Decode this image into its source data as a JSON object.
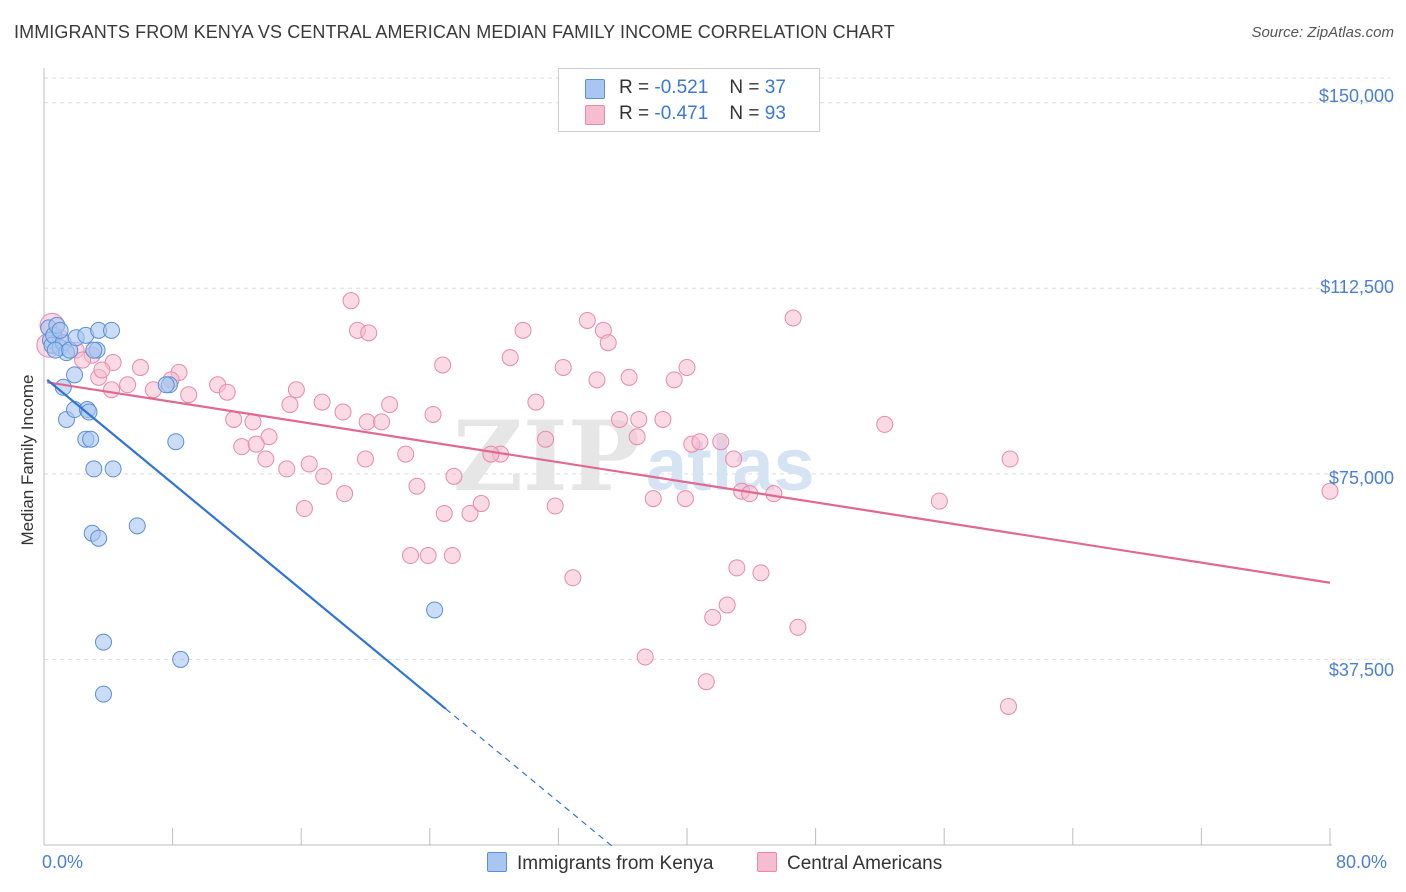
{
  "header": {
    "title": "IMMIGRANTS FROM KENYA VS CENTRAL AMERICAN MEDIAN FAMILY INCOME CORRELATION CHART",
    "source": "Source: ZipAtlas.com"
  },
  "legend": {
    "row1": {
      "r_label": "R =",
      "r_value": "-0.521",
      "n_label": "N =",
      "n_value": "37"
    },
    "row2": {
      "r_label": "R =",
      "r_value": "-0.471",
      "n_label": "N =",
      "n_value": "93"
    }
  },
  "bottom_legend": {
    "kenya": "Immigrants from Kenya",
    "central": "Central Americans"
  },
  "watermark": {
    "zip": "ZIP",
    "atlas": "atlas"
  },
  "colors": {
    "kenya_fill": "#a9c6f0",
    "kenya_stroke": "#5b8fd8",
    "kenya_line": "#2f74d6",
    "central_fill": "#f6bcd0",
    "central_stroke": "#e98aaa",
    "central_line": "#e06893",
    "tick_label": "#4a7fd0"
  },
  "chart_data": {
    "type": "scatter",
    "title": "IMMIGRANTS FROM KENYA VS CENTRAL AMERICAN MEDIAN FAMILY INCOME CORRELATION CHART",
    "xlabel": "",
    "ylabel": "Median Family Income",
    "xlim": [
      0,
      80
    ],
    "ylim": [
      0,
      155000
    ],
    "x_tick_labels": [
      "0.0%",
      "80.0%"
    ],
    "y_ticks": [
      37500,
      75000,
      112500,
      150000
    ],
    "y_tick_labels": [
      "$37,500",
      "$75,000",
      "$112,500",
      "$150,000"
    ],
    "grid": true,
    "legend_position": "top-center",
    "series": [
      {
        "name": "Immigrants from Kenya",
        "R": -0.521,
        "N": 37,
        "trend": {
          "x0": 0.2,
          "y0": 94000,
          "x1": 25,
          "y1": 27500,
          "dashed_to_x": 35.5
        },
        "points": [
          [
            0.3,
            104500
          ],
          [
            0.4,
            102000
          ],
          [
            0.5,
            101000
          ],
          [
            0.6,
            103000
          ],
          [
            0.8,
            105000
          ],
          [
            1.0,
            100500
          ],
          [
            1.2,
            101500
          ],
          [
            1.4,
            99500
          ],
          [
            0.7,
            100000
          ],
          [
            1.6,
            100000
          ],
          [
            2.0,
            102500
          ],
          [
            2.6,
            103000
          ],
          [
            3.4,
            104000
          ],
          [
            4.2,
            104000
          ],
          [
            3.3,
            100000
          ],
          [
            7.8,
            93000
          ],
          [
            1.9,
            95000
          ],
          [
            1.2,
            92500
          ],
          [
            1.4,
            86000
          ],
          [
            1.9,
            88000
          ],
          [
            2.7,
            88000
          ],
          [
            2.8,
            87500
          ],
          [
            2.6,
            82000
          ],
          [
            2.9,
            82000
          ],
          [
            3.1,
            76000
          ],
          [
            4.3,
            76000
          ],
          [
            8.2,
            81500
          ],
          [
            7.6,
            93000
          ],
          [
            3.0,
            63000
          ],
          [
            3.4,
            62000
          ],
          [
            5.8,
            64500
          ],
          [
            3.7,
            41000
          ],
          [
            3.7,
            30500
          ],
          [
            8.5,
            37500
          ],
          [
            24.3,
            47500
          ],
          [
            3.1,
            100000
          ],
          [
            1.0,
            104000
          ]
        ]
      },
      {
        "name": "Central Americans",
        "R": -0.471,
        "N": 93,
        "trend": {
          "x0": 0.2,
          "y0": 93500,
          "x1": 80,
          "y1": 53000
        },
        "points": [
          [
            0.3,
            101000
          ],
          [
            0.5,
            105000
          ],
          [
            1.0,
            102500
          ],
          [
            2.0,
            100000
          ],
          [
            3.0,
            99000
          ],
          [
            4.3,
            97500
          ],
          [
            3.4,
            94500
          ],
          [
            6.0,
            96500
          ],
          [
            8.4,
            95500
          ],
          [
            9.0,
            91000
          ],
          [
            10.8,
            93000
          ],
          [
            11.4,
            91500
          ],
          [
            11.8,
            86000
          ],
          [
            13.0,
            85500
          ],
          [
            14.0,
            82500
          ],
          [
            15.3,
            89000
          ],
          [
            15.7,
            92000
          ],
          [
            17.3,
            89500
          ],
          [
            18.6,
            87500
          ],
          [
            20.1,
            85500
          ],
          [
            21.5,
            89000
          ],
          [
            13.8,
            78000
          ],
          [
            15.1,
            76000
          ],
          [
            16.5,
            77000
          ],
          [
            17.4,
            74500
          ],
          [
            18.7,
            71000
          ],
          [
            20.0,
            78000
          ],
          [
            21.0,
            85500
          ],
          [
            22.5,
            79000
          ],
          [
            23.2,
            72500
          ],
          [
            24.2,
            87000
          ],
          [
            24.9,
            67000
          ],
          [
            25.5,
            74500
          ],
          [
            26.5,
            67000
          ],
          [
            27.2,
            69000
          ],
          [
            28.4,
            79000
          ],
          [
            29.0,
            98500
          ],
          [
            29.8,
            104000
          ],
          [
            30.6,
            89500
          ],
          [
            31.2,
            82000
          ],
          [
            31.8,
            68500
          ],
          [
            32.3,
            96500
          ],
          [
            32.9,
            54000
          ],
          [
            33.8,
            106000
          ],
          [
            34.4,
            94000
          ],
          [
            34.8,
            104000
          ],
          [
            35.1,
            101500
          ],
          [
            35.8,
            86000
          ],
          [
            36.4,
            94500
          ],
          [
            36.9,
            82500
          ],
          [
            37.4,
            38000
          ],
          [
            37.0,
            86000
          ],
          [
            37.9,
            70000
          ],
          [
            38.5,
            86000
          ],
          [
            39.2,
            94000
          ],
          [
            39.9,
            70000
          ],
          [
            40.3,
            81000
          ],
          [
            40.8,
            81500
          ],
          [
            40.0,
            96500
          ],
          [
            41.2,
            33000
          ],
          [
            41.6,
            46000
          ],
          [
            42.1,
            81500
          ],
          [
            42.5,
            48500
          ],
          [
            42.9,
            78000
          ],
          [
            43.1,
            56000
          ],
          [
            43.4,
            71500
          ],
          [
            43.9,
            71000
          ],
          [
            44.6,
            55000
          ],
          [
            45.4,
            71000
          ],
          [
            46.9,
            44000
          ],
          [
            46.6,
            106500
          ],
          [
            52.3,
            85000
          ],
          [
            55.7,
            69500
          ],
          [
            60.1,
            78000
          ],
          [
            60.0,
            28000
          ],
          [
            80.0,
            71500
          ],
          [
            7.9,
            94000
          ],
          [
            4.2,
            92000
          ],
          [
            6.8,
            92000
          ],
          [
            2.4,
            98000
          ],
          [
            3.6,
            96000
          ],
          [
            5.2,
            93000
          ],
          [
            12.3,
            80500
          ],
          [
            13.2,
            81000
          ],
          [
            16.2,
            68000
          ],
          [
            19.1,
            110000
          ],
          [
            19.5,
            104000
          ],
          [
            20.2,
            103500
          ],
          [
            22.8,
            58500
          ],
          [
            23.9,
            58500
          ],
          [
            25.4,
            58500
          ],
          [
            24.8,
            97000
          ],
          [
            27.8,
            79000
          ]
        ]
      }
    ]
  }
}
